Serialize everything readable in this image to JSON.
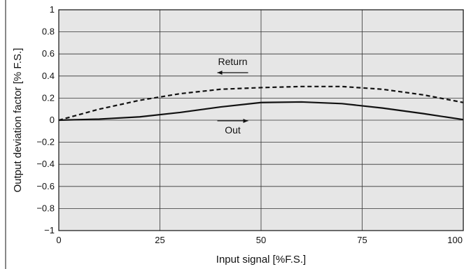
{
  "chart_data": {
    "type": "line",
    "title": "",
    "xlabel": "Input signal [%F.S.]",
    "ylabel": "Output deviation factor [% F.S.]",
    "xlim": [
      0,
      100
    ],
    "ylim": [
      -1,
      1
    ],
    "x_ticks": [
      0,
      25,
      50,
      75,
      100
    ],
    "x_tick_labels": [
      "0",
      "25",
      "50",
      "75",
      "100"
    ],
    "y_ticks": [
      1,
      0.8,
      0.6,
      0.4,
      0.2,
      0,
      -0.2,
      -0.4,
      -0.6,
      -0.8,
      -1
    ],
    "y_tick_labels": [
      "1",
      "0.8",
      "0.6",
      "0.4",
      "0.2",
      "0",
      "−0.2",
      "−0.4",
      "−0.6",
      "−0.8",
      "−1"
    ],
    "grid": true,
    "background_color": "#e6e6e6",
    "grid_color": "#333333",
    "series": [
      {
        "name": "Out",
        "style": "solid",
        "color": "#111111",
        "x": [
          0,
          10,
          20,
          30,
          40,
          50,
          60,
          70,
          80,
          90,
          100
        ],
        "y": [
          0.0,
          0.01,
          0.03,
          0.07,
          0.12,
          0.16,
          0.165,
          0.15,
          0.11,
          0.06,
          0.005
        ]
      },
      {
        "name": "Return",
        "style": "dashed",
        "color": "#111111",
        "x": [
          0,
          10,
          20,
          30,
          40,
          50,
          60,
          70,
          80,
          90,
          100
        ],
        "y": [
          0.0,
          0.1,
          0.18,
          0.24,
          0.28,
          0.295,
          0.305,
          0.305,
          0.28,
          0.23,
          0.16
        ]
      }
    ],
    "annotations": [
      {
        "text": "Return",
        "arrow": "left",
        "x": 43,
        "y": 0.5
      },
      {
        "text": "Out",
        "arrow": "right",
        "x": 43,
        "y": -0.12
      }
    ]
  }
}
